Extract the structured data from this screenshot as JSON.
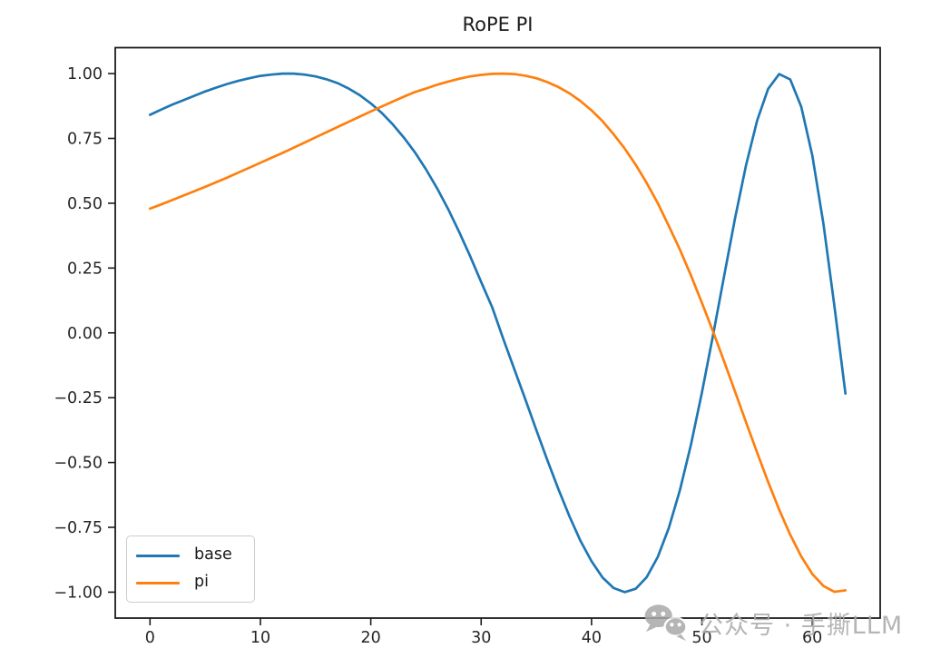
{
  "watermark": {
    "text": "公众号 · 手撕LLM",
    "icon": "wechat-icon",
    "color": "#a9a9a9"
  },
  "chart_data": {
    "type": "line",
    "title": "RoPE PI",
    "xlabel": "",
    "ylabel": "",
    "grid": false,
    "xlim": [
      -3.15,
      66.15
    ],
    "ylim": [
      -1.1,
      1.1
    ],
    "xticks": {
      "values": [
        0,
        10,
        20,
        30,
        40,
        50,
        60
      ],
      "labels": [
        "0",
        "10",
        "20",
        "30",
        "40",
        "50",
        "60"
      ]
    },
    "yticks": {
      "values": [
        1.0,
        0.75,
        0.5,
        0.25,
        0.0,
        -0.25,
        -0.5,
        -0.75,
        -1.0
      ],
      "labels": [
        "1.00",
        "0.75",
        "0.50",
        "0.25",
        "0.00",
        "−0.25",
        "−0.50",
        "−0.75",
        "−1.00"
      ]
    },
    "legend": {
      "position": "lower left",
      "entries": [
        "base",
        "pi"
      ]
    },
    "axis_color": "#1c1c1c",
    "tick_label_color": "#262626",
    "x": [
      0,
      1,
      2,
      3,
      4,
      5,
      6,
      7,
      8,
      9,
      10,
      11,
      12,
      13,
      14,
      15,
      16,
      17,
      18,
      19,
      20,
      21,
      22,
      23,
      24,
      25,
      26,
      27,
      28,
      29,
      30,
      31,
      32,
      33,
      34,
      35,
      36,
      37,
      38,
      39,
      40,
      41,
      42,
      43,
      44,
      45,
      46,
      47,
      48,
      49,
      50,
      51,
      52,
      53,
      54,
      55,
      56,
      57,
      58,
      59,
      60,
      61,
      62,
      63
    ],
    "series": [
      {
        "name": "base",
        "color": "#1f77b4",
        "values": [
          0.841,
          0.861,
          0.88,
          0.897,
          0.914,
          0.931,
          0.946,
          0.96,
          0.972,
          0.982,
          0.991,
          0.996,
          1.0,
          1.0,
          0.996,
          0.989,
          0.978,
          0.963,
          0.942,
          0.917,
          0.885,
          0.848,
          0.804,
          0.753,
          0.696,
          0.631,
          0.558,
          0.478,
          0.39,
          0.296,
          0.196,
          0.099,
          -0.023,
          -0.139,
          -0.256,
          -0.375,
          -0.491,
          -0.603,
          -0.708,
          -0.802,
          -0.881,
          -0.944,
          -0.984,
          -1.0,
          -0.987,
          -0.942,
          -0.864,
          -0.753,
          -0.608,
          -0.432,
          -0.231,
          -0.011,
          0.217,
          0.441,
          0.647,
          0.819,
          0.941,
          0.998,
          0.977,
          0.872,
          0.684,
          0.422,
          0.105,
          -0.234
        ]
      },
      {
        "name": "pi",
        "color": "#ff7f0e",
        "values": [
          0.479,
          0.495,
          0.512,
          0.529,
          0.546,
          0.563,
          0.581,
          0.599,
          0.618,
          0.637,
          0.656,
          0.675,
          0.694,
          0.714,
          0.734,
          0.754,
          0.774,
          0.794,
          0.814,
          0.834,
          0.854,
          0.873,
          0.892,
          0.911,
          0.929,
          0.942,
          0.957,
          0.969,
          0.98,
          0.989,
          0.995,
          0.999,
          1.0,
          0.998,
          0.992,
          0.982,
          0.967,
          0.948,
          0.924,
          0.894,
          0.858,
          0.816,
          0.766,
          0.711,
          0.648,
          0.578,
          0.5,
          0.413,
          0.322,
          0.222,
          0.116,
          0.006,
          -0.109,
          -0.226,
          -0.345,
          -0.462,
          -0.575,
          -0.682,
          -0.779,
          -0.862,
          -0.93,
          -0.976,
          -0.999,
          -0.993
        ]
      }
    ]
  }
}
